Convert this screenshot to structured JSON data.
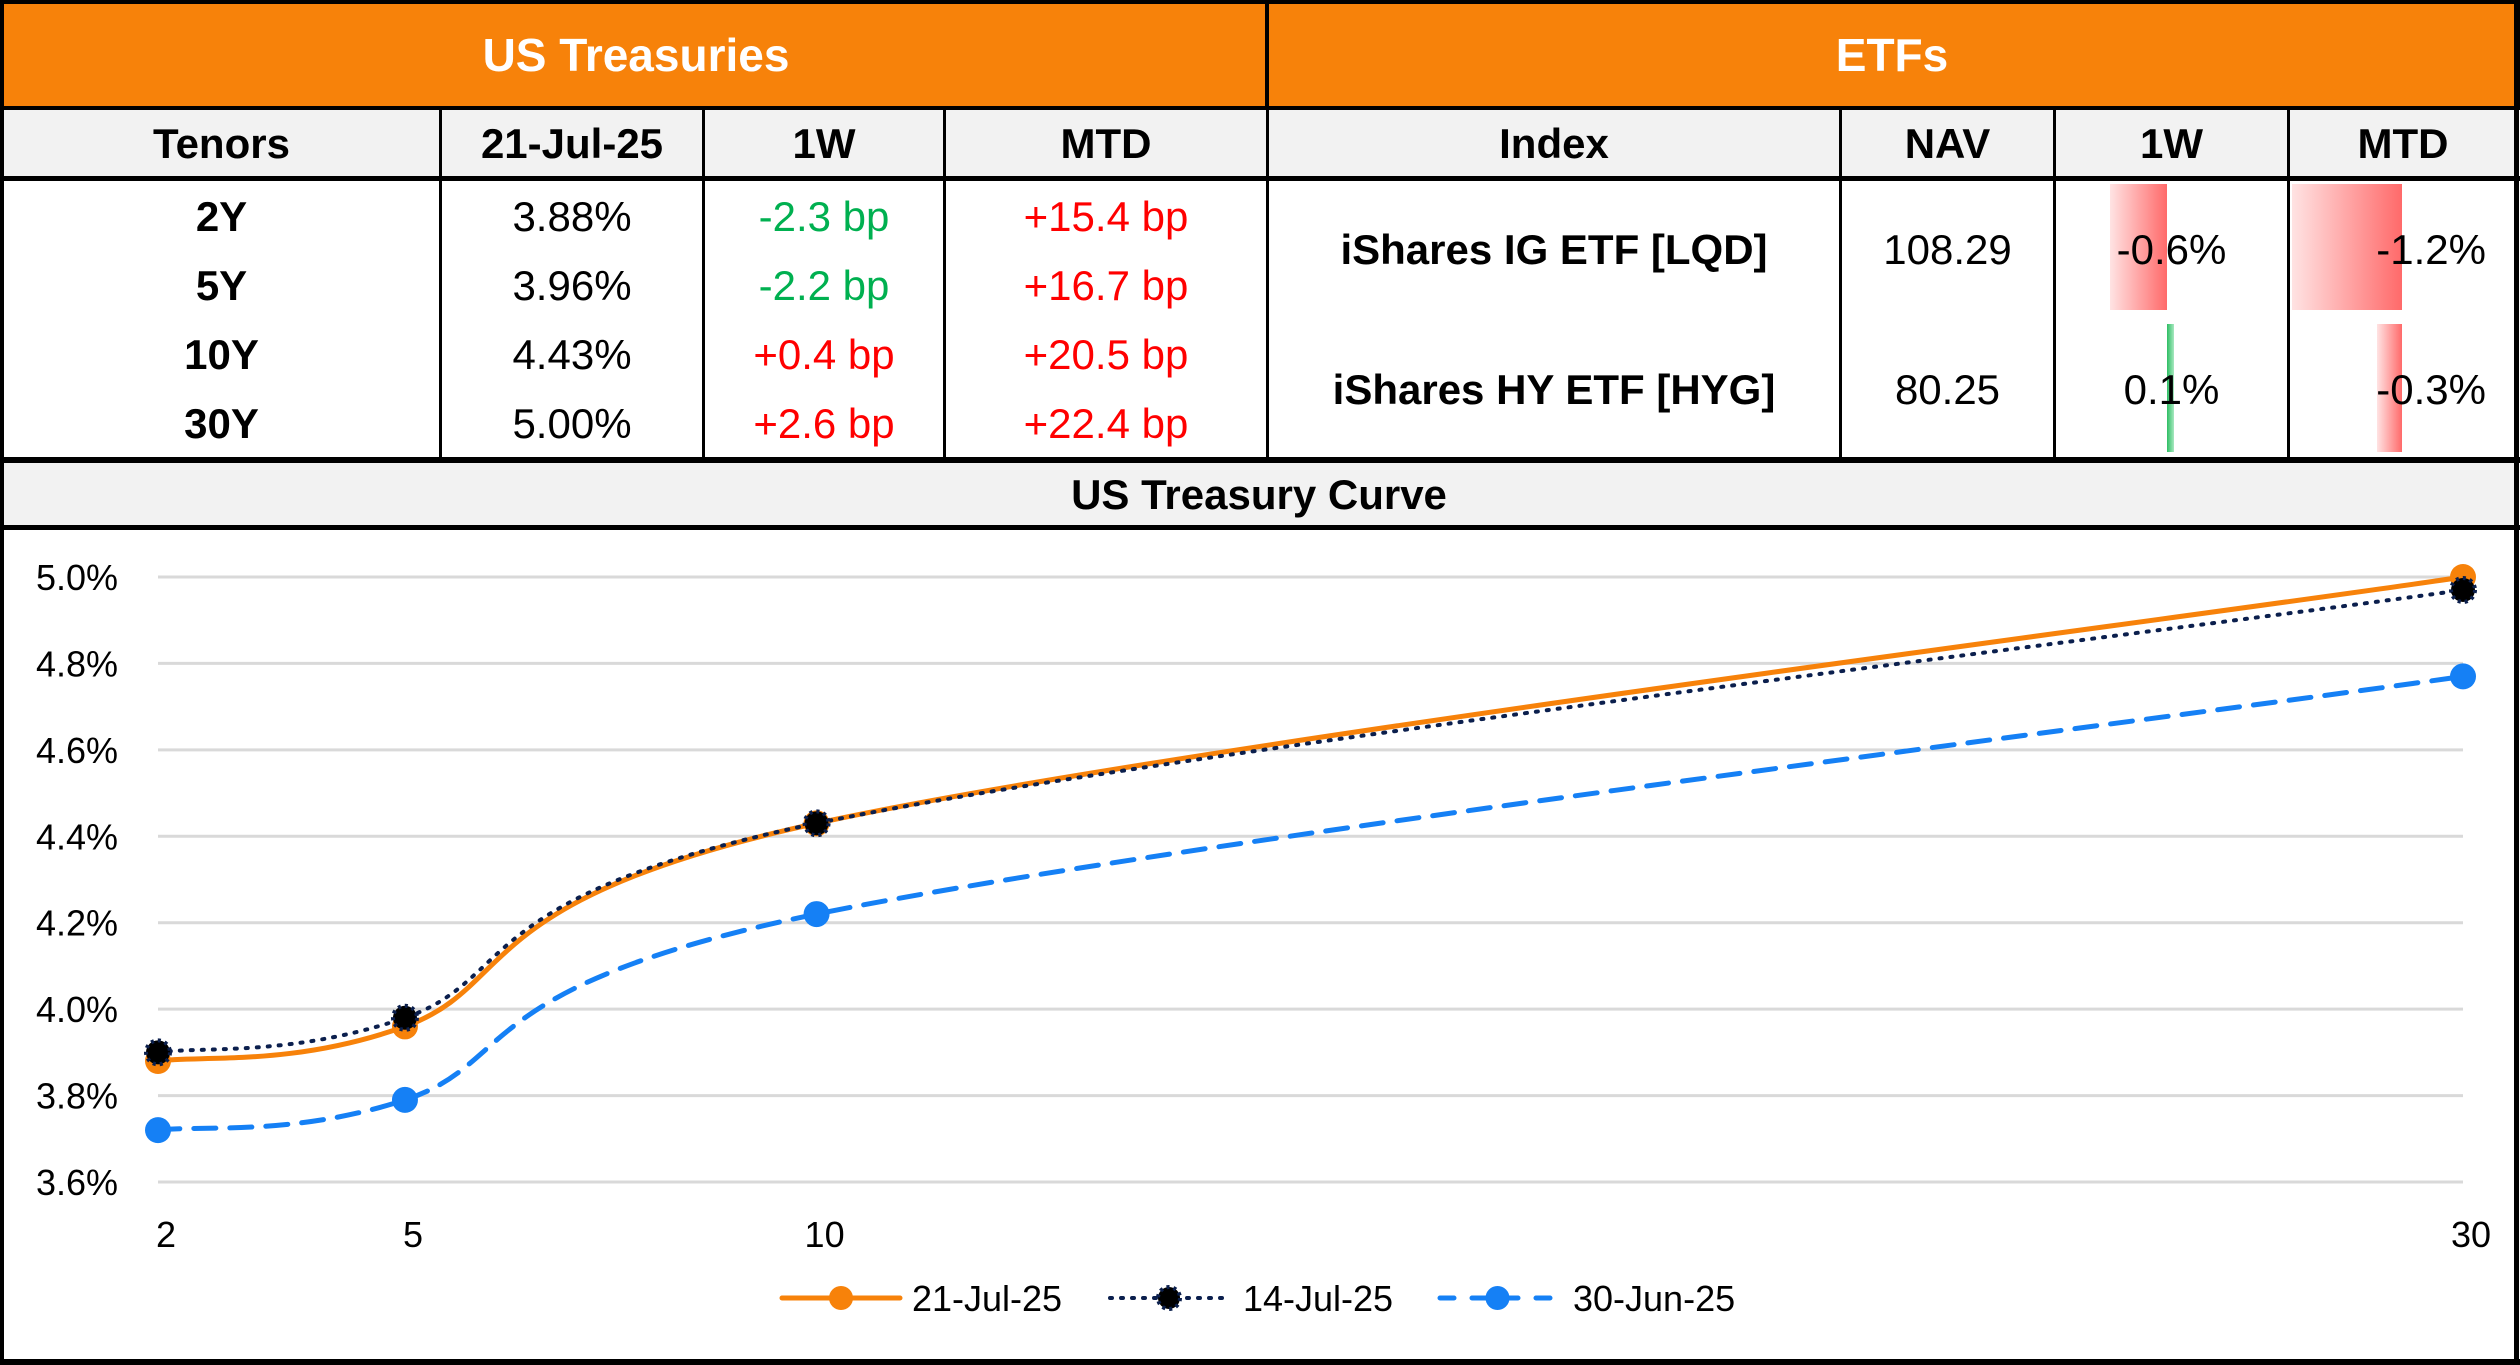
{
  "treasuries": {
    "title": "US Treasuries",
    "headers": [
      "Tenors",
      "21-Jul-25",
      "1W",
      "MTD"
    ],
    "rows": [
      {
        "tenor": "2Y",
        "yield": "3.88%",
        "w1": "-2.3 bp",
        "w1_dir": "down",
        "mtd": "+15.4 bp",
        "mtd_dir": "up"
      },
      {
        "tenor": "5Y",
        "yield": "3.96%",
        "w1": "-2.2 bp",
        "w1_dir": "down",
        "mtd": "+16.7 bp",
        "mtd_dir": "up"
      },
      {
        "tenor": "10Y",
        "yield": "4.43%",
        "w1": "+0.4 bp",
        "w1_dir": "up",
        "mtd": "+20.5 bp",
        "mtd_dir": "up"
      },
      {
        "tenor": "30Y",
        "yield": "5.00%",
        "w1": "+2.6 bp",
        "w1_dir": "up",
        "mtd": "+22.4 bp",
        "mtd_dir": "up"
      }
    ]
  },
  "etfs": {
    "title": "ETFs",
    "headers": [
      "Index",
      "NAV",
      "1W",
      "MTD"
    ],
    "rows": [
      {
        "index": "iShares IG ETF [LQD]",
        "nav": "108.29",
        "w1": "-0.6%",
        "w1_value": -0.6,
        "mtd": "-1.2%",
        "mtd_value": -1.2
      },
      {
        "index": "iShares HY ETF [HYG]",
        "nav": "80.25",
        "w1": "0.1%",
        "w1_value": 0.1,
        "mtd": "-0.3%",
        "mtd_value": -0.3
      }
    ]
  },
  "colors": {
    "header_orange": "#F7820A",
    "positive_green": "#00B050",
    "negative_red": "#FF0000",
    "series_21jul": "#F7820A",
    "series_14jul": "#0B1F4D",
    "series_30jun": "#1580F5"
  },
  "chart_data": {
    "type": "line",
    "title": "US Treasury Curve",
    "xlabel": "",
    "ylabel": "",
    "x": [
      2,
      5,
      10,
      30
    ],
    "x_ticks": [
      "2",
      "5",
      "10",
      "30"
    ],
    "y_ticks": [
      "3.6%",
      "3.8%",
      "4.0%",
      "4.2%",
      "4.4%",
      "4.6%",
      "4.8%",
      "5.0%"
    ],
    "ylim": [
      3.6,
      5.0
    ],
    "xlim": [
      2,
      30
    ],
    "grid": true,
    "legend_position": "bottom",
    "series": [
      {
        "name": "21-Jul-25",
        "values": [
          3.88,
          3.96,
          4.43,
          5.0
        ],
        "style": "solid"
      },
      {
        "name": "14-Jul-25",
        "values": [
          3.9,
          3.98,
          4.43,
          4.97
        ],
        "style": "dotted"
      },
      {
        "name": "30-Jun-25",
        "values": [
          3.72,
          3.79,
          4.22,
          4.77
        ],
        "style": "dashed"
      }
    ]
  }
}
